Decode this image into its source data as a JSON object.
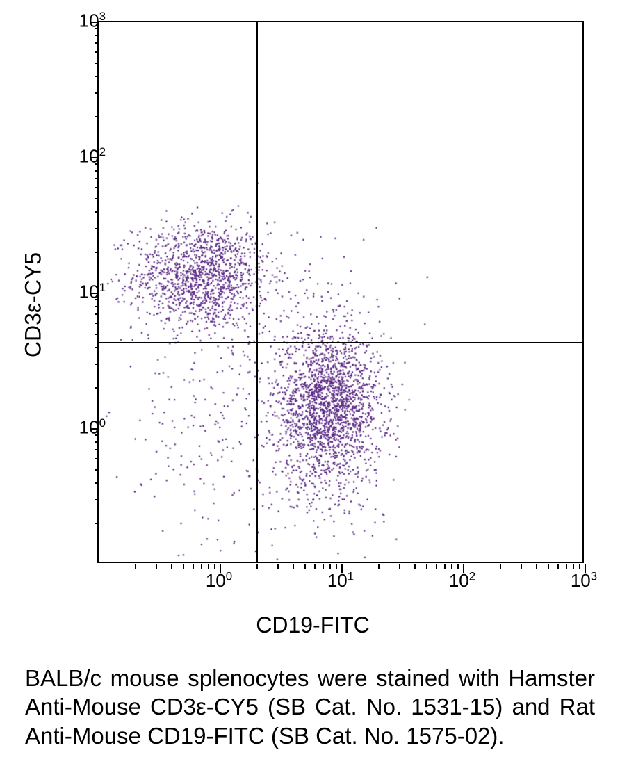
{
  "chart": {
    "type": "scatter",
    "x_label": "CD19-FITC",
    "y_label": "CD3ε-CY5",
    "x_scale": "log",
    "y_scale": "log",
    "x_min_exp": -1,
    "x_max_exp": 3,
    "y_min_exp": -1,
    "y_max_exp": 3,
    "y_ticks_exp": [
      0,
      1,
      2,
      3
    ],
    "x_ticks_exp": [
      0,
      1,
      2,
      3
    ],
    "quadrant_x_value": 2.0,
    "quadrant_y_value": 4.3,
    "point_color": "#5b2a86",
    "point_size": 2.2,
    "border_color": "#000000",
    "bg_color": "#ffffff",
    "populations": [
      {
        "name": "T-cells-Q1",
        "cx_log": -0.15,
        "cy_log": 1.12,
        "sx": 0.28,
        "sy": 0.2,
        "n": 1300
      },
      {
        "name": "B-cells-Q4",
        "cx_log": 0.9,
        "cy_log": 0.15,
        "sx": 0.22,
        "sy": 0.28,
        "n": 2000
      },
      {
        "name": "dbl-neg-Q3",
        "cx_log": -0.1,
        "cy_log": -0.1,
        "sx": 0.4,
        "sy": 0.45,
        "n": 180
      },
      {
        "name": "sparse-Q2",
        "cx_log": 0.8,
        "cy_log": 1.05,
        "sx": 0.35,
        "sy": 0.25,
        "n": 55
      },
      {
        "name": "tail-low-y",
        "cx_log": 0.85,
        "cy_log": -0.55,
        "sx": 0.3,
        "sy": 0.25,
        "n": 90
      },
      {
        "name": "bridge",
        "cx_log": 0.35,
        "cy_log": 0.55,
        "sx": 0.35,
        "sy": 0.3,
        "n": 80
      }
    ]
  },
  "caption": "BALB/c mouse splenocytes were stained with Hamster Anti-Mouse CD3ε-CY5 (SB Cat. No. 1531-15) and Rat Anti-Mouse CD19-FITC (SB Cat. No. 1575-02)."
}
